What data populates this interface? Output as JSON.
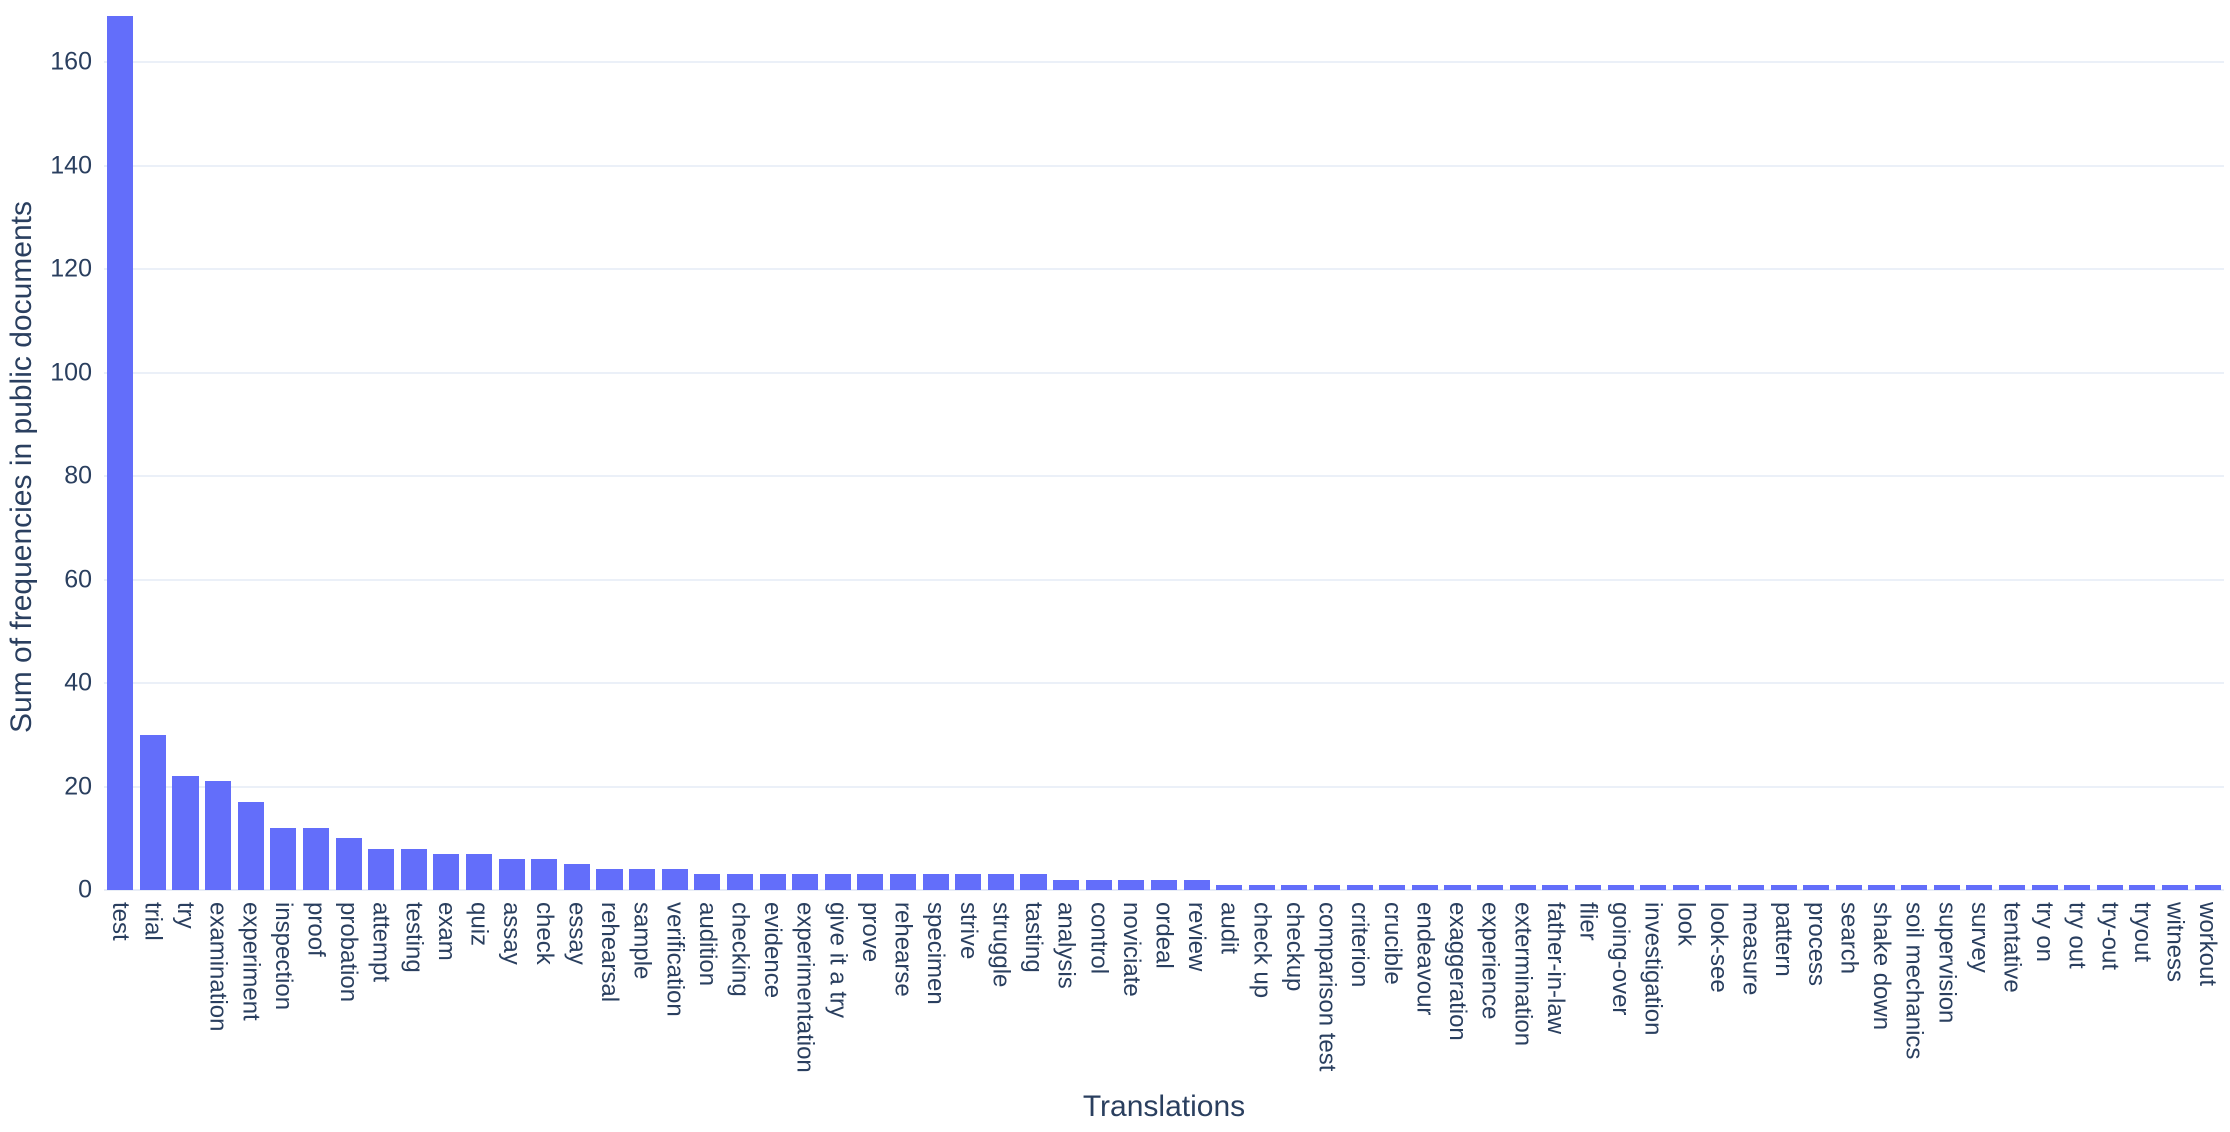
{
  "chart_data": {
    "type": "bar",
    "title": "",
    "xlabel": "Translations",
    "ylabel": "Sum of frequencies in public documents",
    "categories": [
      "test",
      "trial",
      "try",
      "examination",
      "experiment",
      "inspection",
      "proof",
      "probation",
      "attempt",
      "testing",
      "exam",
      "quiz",
      "assay",
      "check",
      "essay",
      "rehearsal",
      "sample",
      "verification",
      "audition",
      "checking",
      "evidence",
      "experimentation",
      "give it a try",
      "prove",
      "rehearse",
      "specimen",
      "strive",
      "struggle",
      "tasting",
      "analysis",
      "control",
      "noviciate",
      "ordeal",
      "review",
      "audit",
      "check up",
      "checkup",
      "comparison test",
      "criterion",
      "crucible",
      "endeavour",
      "exaggeration",
      "experience",
      "extermination",
      "father-in-law",
      "flier",
      "going-over",
      "investigation",
      "look",
      "look-see",
      "measure",
      "pattern",
      "process",
      "search",
      "shake down",
      "soil mechanics",
      "supervision",
      "survey",
      "tentative",
      "try on",
      "try out",
      "try-out",
      "tryout",
      "witness",
      "workout"
    ],
    "values": [
      169,
      30,
      22,
      21,
      17,
      12,
      12,
      10,
      8,
      8,
      7,
      7,
      6,
      6,
      5,
      4,
      4,
      4,
      3,
      3,
      3,
      3,
      3,
      3,
      3,
      3,
      3,
      3,
      3,
      2,
      2,
      2,
      2,
      2,
      1,
      1,
      1,
      1,
      1,
      1,
      1,
      1,
      1,
      1,
      1,
      1,
      1,
      1,
      1,
      1,
      1,
      1,
      1,
      1,
      1,
      1,
      1,
      1,
      1,
      1,
      1,
      1,
      1,
      1,
      1
    ],
    "yticks": [
      0,
      20,
      40,
      60,
      80,
      100,
      120,
      140,
      160
    ],
    "ylim": [
      0,
      172
    ],
    "grid": true,
    "legend": "none",
    "colors": {
      "bar": "#636EFA",
      "text": "#2a3f5f",
      "grid": "#EBF0F8",
      "zeroline": "#E8EDF6",
      "background": "#FFFFFF"
    }
  }
}
